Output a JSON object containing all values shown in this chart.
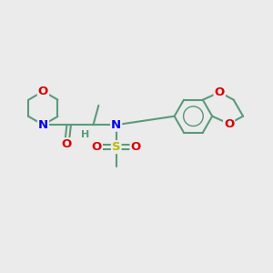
{
  "background_color": "#ebebeb",
  "bond_color": "#5a9a7a",
  "bond_width": 1.5,
  "atom_colors": {
    "N": "#0000ee",
    "O": "#dd0000",
    "S": "#bbbb00",
    "C": "#5a9a7a",
    "H": "#5a9a7a"
  },
  "font_size": 9.5,
  "fig_width": 3.0,
  "fig_height": 3.0,
  "dpi": 100,
  "xlim": [
    0,
    10
  ],
  "ylim": [
    0,
    10
  ]
}
